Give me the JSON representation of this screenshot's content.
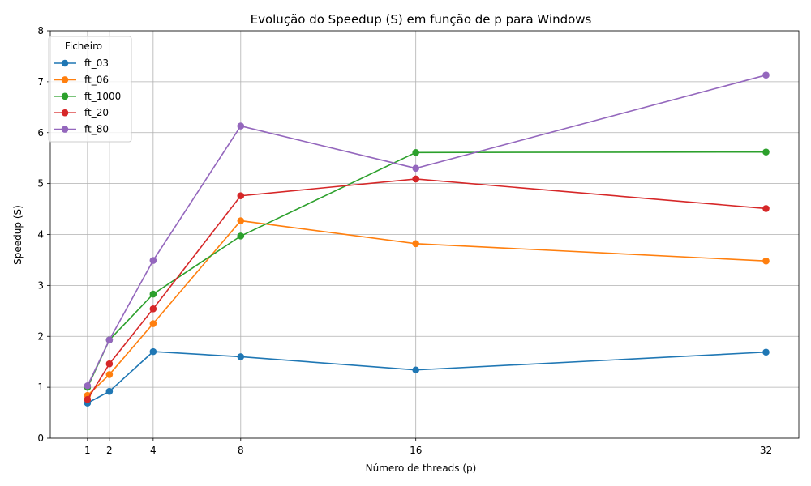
{
  "chart_data": {
    "type": "line",
    "title": "Evolução do Speedup (S) em função de p para Windows",
    "xlabel": "Número de threads (p)",
    "ylabel": "Speedup (S)",
    "x": [
      1,
      2,
      4,
      8,
      16,
      32
    ],
    "x_ticks": [
      "1",
      "2",
      "4",
      "8",
      "16",
      "32"
    ],
    "y_ticks": [
      "0",
      "1",
      "2",
      "3",
      "4",
      "5",
      "6",
      "7",
      "8"
    ],
    "xlim": [
      0,
      32
    ],
    "ylim": [
      0,
      8
    ],
    "grid": true,
    "marker": "circle",
    "legend": {
      "title": "Ficheiro",
      "placement": "top-left"
    },
    "series": [
      {
        "name": "ft_03",
        "color": "#1f77b4",
        "values": [
          0.69,
          0.92,
          1.7,
          1.6,
          1.34,
          1.69
        ]
      },
      {
        "name": "ft_06",
        "color": "#ff7f0e",
        "values": [
          0.84,
          1.25,
          2.25,
          4.27,
          3.82,
          3.48
        ]
      },
      {
        "name": "ft_1000",
        "color": "#2ca02c",
        "values": [
          1.0,
          1.93,
          2.83,
          3.97,
          5.61,
          5.62
        ]
      },
      {
        "name": "ft_20",
        "color": "#d62728",
        "values": [
          0.76,
          1.46,
          2.54,
          4.76,
          5.09,
          4.51
        ]
      },
      {
        "name": "ft_80",
        "color": "#9467bd",
        "values": [
          1.03,
          1.93,
          3.49,
          6.13,
          5.3,
          7.13
        ]
      }
    ]
  }
}
